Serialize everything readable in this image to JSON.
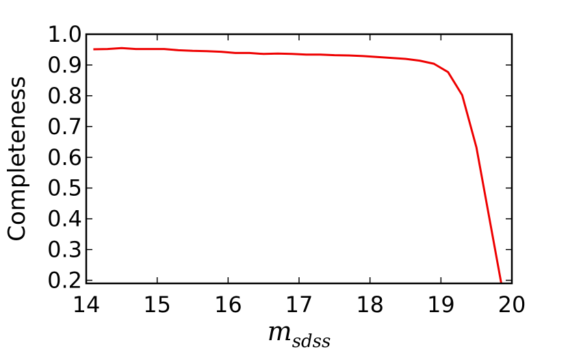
{
  "chart_data": {
    "type": "line",
    "title": "",
    "xlabel": "m",
    "xlabel_subscript": "sdss",
    "ylabel": "Completeness",
    "xlim": [
      14,
      20
    ],
    "ylim": [
      0.19,
      1.0
    ],
    "xticks": [
      14,
      15,
      16,
      17,
      18,
      19,
      20
    ],
    "xtick_labels": [
      "14",
      "15",
      "16",
      "17",
      "18",
      "19",
      "20"
    ],
    "yticks": [
      0.2,
      0.3,
      0.4,
      0.5,
      0.6,
      0.7,
      0.8,
      0.9,
      1.0
    ],
    "ytick_labels": [
      "0.2",
      "0.3",
      "0.4",
      "0.5",
      "0.6",
      "0.7",
      "0.8",
      "0.9",
      "1.0"
    ],
    "grid": false,
    "legend": "none",
    "series": [
      {
        "color": "#ee0000",
        "x": [
          14.1,
          14.3,
          14.5,
          14.7,
          14.9,
          15.1,
          15.3,
          15.5,
          15.7,
          15.9,
          16.1,
          16.3,
          16.5,
          16.7,
          16.9,
          17.1,
          17.3,
          17.5,
          17.7,
          17.9,
          18.1,
          18.3,
          18.5,
          18.7,
          18.9,
          19.1,
          19.3,
          19.5,
          19.7,
          19.85
        ],
        "y": [
          0.951,
          0.952,
          0.955,
          0.952,
          0.952,
          0.952,
          0.948,
          0.946,
          0.945,
          0.943,
          0.939,
          0.939,
          0.936,
          0.937,
          0.936,
          0.934,
          0.934,
          0.932,
          0.931,
          0.929,
          0.926,
          0.923,
          0.92,
          0.914,
          0.904,
          0.877,
          0.802,
          0.632,
          0.38,
          0.19
        ]
      }
    ]
  }
}
